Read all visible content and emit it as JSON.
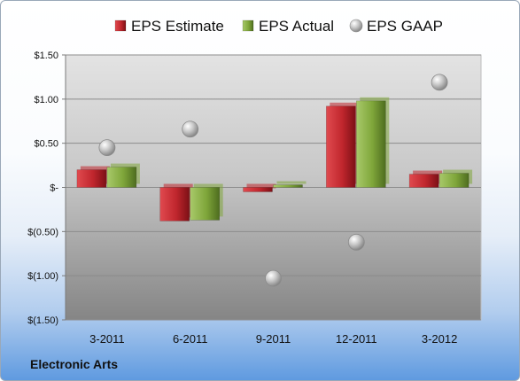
{
  "chart_data": {
    "type": "bar",
    "categories": [
      "3-2011",
      "6-2011",
      "9-2011",
      "12-2011",
      "3-2012"
    ],
    "series": [
      {
        "name": "EPS Estimate",
        "type": "bar",
        "values": [
          0.2,
          -0.38,
          -0.05,
          0.92,
          0.15
        ],
        "color": "#c0262d"
      },
      {
        "name": "EPS Actual",
        "type": "bar",
        "values": [
          0.23,
          -0.37,
          0.03,
          0.98,
          0.16
        ],
        "color": "#7fa63a"
      },
      {
        "name": "EPS GAAP",
        "type": "scatter",
        "values": [
          0.45,
          0.66,
          -1.03,
          -0.62,
          1.19
        ],
        "color": "#a8a8a8"
      }
    ],
    "ylim": [
      -1.5,
      1.5
    ],
    "yticks": [
      1.5,
      1.0,
      0.5,
      0,
      -0.5,
      -1.0,
      -1.5
    ],
    "ytick_labels": [
      "$1.50",
      "$1.00",
      "$0.50",
      "$-",
      "$(0.50)",
      "$(1.00)",
      "$(1.50)"
    ],
    "legend_position": "top",
    "grid": true
  },
  "company": "Electronic Arts"
}
